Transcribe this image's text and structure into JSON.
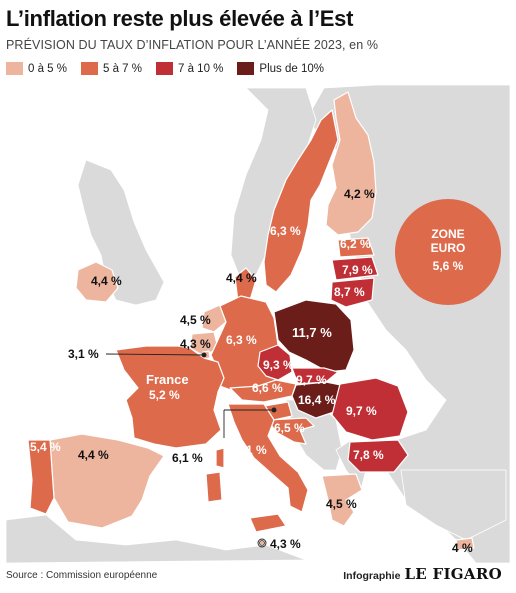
{
  "header": {
    "title": "L’inflation reste plus élevée à l’Est",
    "subtitle": "PRÉVISION DU TAUX D’INFLATION POUR L’ANNÉE 2023, en %"
  },
  "legend": [
    {
      "label": "0 à 5 %",
      "color": "#EDB59E"
    },
    {
      "label": "5 à 7 %",
      "color": "#DE6A4C"
    },
    {
      "label": "7 à 10 %",
      "color": "#BF2F35"
    },
    {
      "label": "Plus de 10%",
      "color": "#6B1D1A"
    }
  ],
  "map": {
    "labels": {
      "finland": "4,2 %",
      "sweden": "6,3 %",
      "estonia": "6,2 %",
      "latvia": "7,9 %",
      "lithuania": "8,7 %",
      "denmark": "4,4 %",
      "ireland": "4,4 %",
      "netherlands": "4,5 %",
      "belgium": "4,3 %",
      "luxembourg": "3,1 %",
      "germany": "6,3 %",
      "poland": "11,7 %",
      "czechia": "9,3 %",
      "slovakia": "9,7 %",
      "austria": "6,6 %",
      "hungary": "16,4 %",
      "romania": "9,7 %",
      "bulgaria": "7,8 %",
      "slovenia": "6,5 %",
      "croatia": "6,1 %",
      "italy_callout": "6,1 %",
      "france_name": "France",
      "france_value": "5,2 %",
      "spain": "4,4 %",
      "portugal": "5,4 %",
      "greece": "4,5 %",
      "malta": "4,3 %",
      "cyprus": "4 %"
    },
    "eurozone": {
      "line1": "ZONE",
      "line2": "EURO",
      "value": "5,6 %"
    },
    "colors": {
      "background_land": "#DADADA",
      "country_border": "#FFFFFF",
      "low": "#EDB59E",
      "mid": "#DE6A4C",
      "high": "#BF2F35",
      "very_high": "#6B1D1A"
    }
  },
  "footer": {
    "source": "Source : Commission européenne",
    "credit_label": "Infographie",
    "credit_brand": "LE FIGARO"
  }
}
